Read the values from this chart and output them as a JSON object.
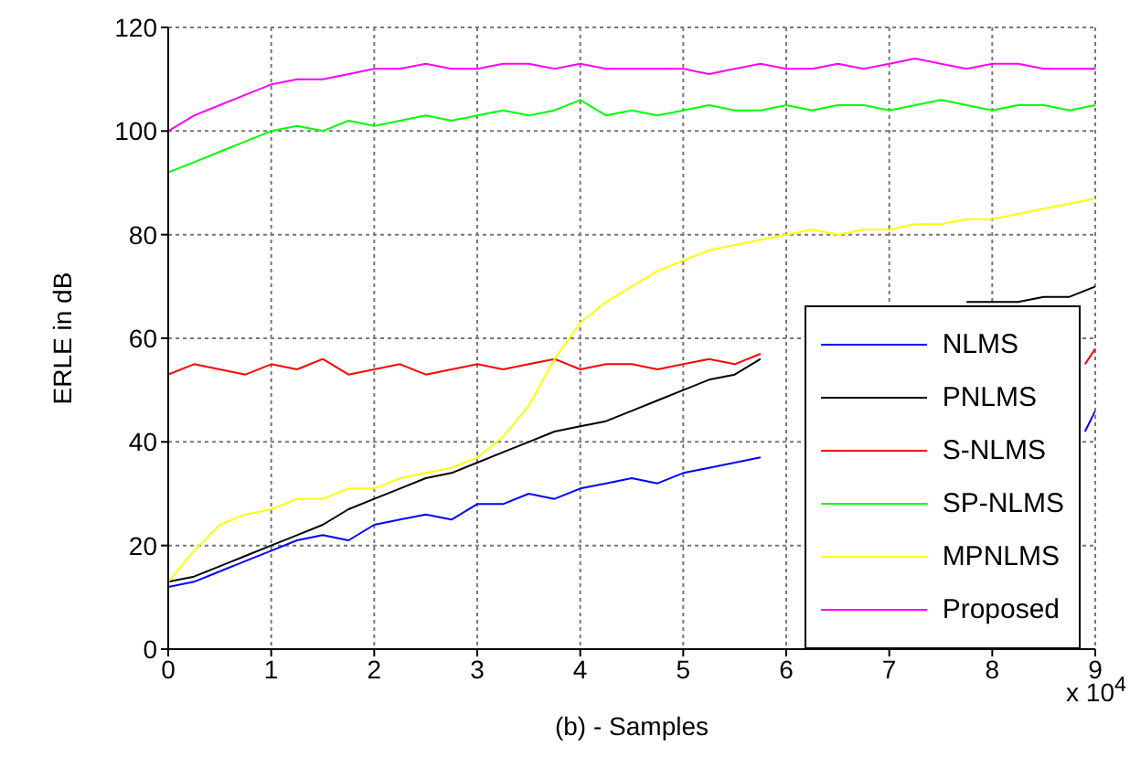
{
  "chart_data": {
    "type": "line",
    "xlabel": "(b) - Samples",
    "ylabel": "ERLE in dB",
    "annotations": [
      "x 10$^{4}$"
    ],
    "xlim": [
      0,
      9
    ],
    "xticks": [
      0,
      1,
      2,
      3,
      4,
      5,
      6,
      7,
      8,
      9
    ],
    "ylim": [
      0,
      120
    ],
    "yticks": [
      0,
      20,
      40,
      60,
      80,
      100,
      120
    ],
    "grid": true,
    "legend": "bottom right",
    "marker": "none",
    "line_style": "solid",
    "series": [
      {
        "name": "NLMS",
        "color": "#0000ff",
        "x": [
          0,
          0.25,
          0.5,
          0.75,
          1,
          1.25,
          1.5,
          1.75,
          2,
          2.25,
          2.5,
          2.75,
          3,
          3.25,
          3.5,
          3.75,
          4,
          4.25,
          4.5,
          4.75,
          5,
          5.25,
          5.5,
          5.75,
          6,
          8.9,
          9
        ],
        "values": [
          12,
          13,
          15,
          17,
          19,
          21,
          22,
          21,
          24,
          25,
          26,
          25,
          28,
          28,
          30,
          29,
          31,
          32,
          33,
          32,
          34,
          35,
          36,
          37,
          null,
          42,
          46
        ]
      },
      {
        "name": "PNLMS",
        "color": "#000000",
        "x": [
          0,
          0.25,
          0.5,
          0.75,
          1,
          1.25,
          1.5,
          1.75,
          2,
          2.25,
          2.5,
          2.75,
          3,
          3.25,
          3.5,
          3.75,
          4,
          4.25,
          4.5,
          4.75,
          5,
          5.25,
          5.5,
          5.75,
          6,
          7.75,
          8,
          8.25,
          8.5,
          8.75,
          9
        ],
        "values": [
          13,
          14,
          16,
          18,
          20,
          22,
          24,
          27,
          29,
          31,
          33,
          34,
          36,
          38,
          40,
          42,
          43,
          44,
          46,
          48,
          50,
          52,
          53,
          56,
          null,
          67,
          67,
          67,
          68,
          68,
          70
        ]
      },
      {
        "name": "S-NLMS",
        "color": "#ff0000",
        "x": [
          0,
          0.25,
          0.5,
          0.75,
          1,
          1.25,
          1.5,
          1.75,
          2,
          2.25,
          2.5,
          2.75,
          3,
          3.25,
          3.5,
          3.75,
          4,
          4.25,
          4.5,
          4.75,
          5,
          5.25,
          5.5,
          5.75,
          6,
          8.9,
          9
        ],
        "values": [
          53,
          55,
          54,
          53,
          55,
          54,
          56,
          53,
          54,
          55,
          53,
          54,
          55,
          54,
          55,
          56,
          54,
          55,
          55,
          54,
          55,
          56,
          55,
          57,
          null,
          55,
          58
        ]
      },
      {
        "name": "SP-NLMS",
        "color": "#00ff00",
        "x": [
          0,
          0.25,
          0.5,
          0.75,
          1,
          1.25,
          1.5,
          1.75,
          2,
          2.25,
          2.5,
          2.75,
          3,
          3.25,
          3.5,
          3.75,
          4,
          4.25,
          4.5,
          4.75,
          5,
          5.25,
          5.5,
          5.75,
          6,
          6.25,
          6.5,
          6.75,
          7,
          7.25,
          7.5,
          7.75,
          8,
          8.25,
          8.5,
          8.75,
          9
        ],
        "values": [
          92,
          94,
          96,
          98,
          100,
          101,
          100,
          102,
          101,
          102,
          103,
          102,
          103,
          104,
          103,
          104,
          106,
          103,
          104,
          103,
          104,
          105,
          104,
          104,
          105,
          104,
          105,
          105,
          104,
          105,
          106,
          105,
          104,
          105,
          105,
          104,
          105
        ]
      },
      {
        "name": "MPNLMS",
        "color": "#ffff00",
        "x": [
          0,
          0.25,
          0.5,
          0.75,
          1,
          1.25,
          1.5,
          1.75,
          2,
          2.25,
          2.5,
          2.75,
          3,
          3.25,
          3.5,
          3.75,
          4,
          4.25,
          4.5,
          4.75,
          5,
          5.25,
          5.5,
          5.75,
          6,
          6.25,
          6.5,
          6.75,
          7,
          7.25,
          7.5,
          7.75,
          8,
          8.25,
          8.5,
          8.75,
          9
        ],
        "values": [
          13,
          19,
          24,
          26,
          27,
          29,
          29,
          31,
          31,
          33,
          34,
          35,
          37,
          41,
          47,
          56,
          63,
          67,
          70,
          73,
          75,
          77,
          78,
          79,
          80,
          81,
          80,
          81,
          81,
          82,
          82,
          83,
          83,
          84,
          85,
          86,
          87
        ]
      },
      {
        "name": "Proposed",
        "color": "#ff00ff",
        "x": [
          0,
          0.25,
          0.5,
          0.75,
          1,
          1.25,
          1.5,
          1.75,
          2,
          2.25,
          2.5,
          2.75,
          3,
          3.25,
          3.5,
          3.75,
          4,
          4.25,
          4.5,
          4.75,
          5,
          5.25,
          5.5,
          5.75,
          6,
          6.25,
          6.5,
          6.75,
          7,
          7.25,
          7.5,
          7.75,
          8,
          8.25,
          8.5,
          8.75,
          9
        ],
        "values": [
          100,
          103,
          105,
          107,
          109,
          110,
          110,
          111,
          112,
          112,
          113,
          112,
          112,
          113,
          113,
          112,
          113,
          112,
          112,
          112,
          112,
          111,
          112,
          113,
          112,
          112,
          113,
          112,
          113,
          114,
          113,
          112,
          113,
          113,
          112,
          112,
          112
        ]
      }
    ]
  }
}
